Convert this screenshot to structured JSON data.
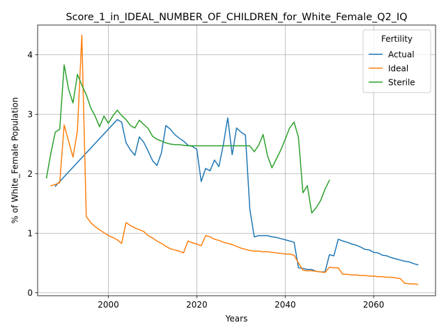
{
  "chart_data": {
    "type": "line",
    "title": "Score_1_in_IDEAL_NUMBER_OF_CHILDREN_for_White_Female_Q2_IQ",
    "xlabel": "Years",
    "ylabel": "% of White_Female Population",
    "xlim": [
      1984,
      2074
    ],
    "ylim": [
      -0.05,
      4.5
    ],
    "x_ticks": [
      2000,
      2020,
      2040,
      2060
    ],
    "x_tick_labels": [
      "2000",
      "2020",
      "2040",
      "2060"
    ],
    "y_ticks": [
      0,
      1,
      2,
      3,
      4
    ],
    "y_tick_labels": [
      "0",
      "1",
      "2",
      "3",
      "4"
    ],
    "grid": true,
    "legend": {
      "title": "Fertility",
      "placement": "top-right"
    },
    "series": [
      {
        "name": "Actual",
        "color": "#1f77b4",
        "points": [
          [
            1988,
            1.79
          ],
          [
            2002,
            2.91
          ],
          [
            2003,
            2.87
          ],
          [
            2004,
            2.52
          ],
          [
            2005,
            2.4
          ],
          [
            2006,
            2.31
          ],
          [
            2007,
            2.62
          ],
          [
            2008,
            2.53
          ],
          [
            2009,
            2.38
          ],
          [
            2010,
            2.22
          ],
          [
            2011,
            2.14
          ],
          [
            2012,
            2.35
          ],
          [
            2013,
            2.81
          ],
          [
            2014,
            2.75
          ],
          [
            2015,
            2.66
          ],
          [
            2016,
            2.6
          ],
          [
            2017,
            2.55
          ],
          [
            2018,
            2.48
          ],
          [
            2019,
            2.46
          ],
          [
            2020,
            2.41
          ],
          [
            2021,
            1.87
          ],
          [
            2022,
            2.09
          ],
          [
            2023,
            2.05
          ],
          [
            2024,
            2.23
          ],
          [
            2025,
            2.12
          ],
          [
            2026,
            2.49
          ],
          [
            2027,
            2.94
          ],
          [
            2028,
            2.32
          ],
          [
            2029,
            2.77
          ],
          [
            2030,
            2.7
          ],
          [
            2031,
            2.65
          ],
          [
            2032,
            1.4
          ],
          [
            2033,
            0.94
          ],
          [
            2034,
            0.96
          ],
          [
            2035,
            0.96
          ],
          [
            2036,
            0.96
          ],
          [
            2037,
            0.94
          ],
          [
            2038,
            0.93
          ],
          [
            2039,
            0.91
          ],
          [
            2040,
            0.89
          ],
          [
            2041,
            0.87
          ],
          [
            2042,
            0.85
          ],
          [
            2043,
            0.42
          ],
          [
            2044,
            0.41
          ],
          [
            2045,
            0.39
          ],
          [
            2046,
            0.39
          ],
          [
            2047,
            0.36
          ],
          [
            2048,
            0.35
          ],
          [
            2049,
            0.35
          ],
          [
            2050,
            0.64
          ],
          [
            2051,
            0.62
          ],
          [
            2052,
            0.9
          ],
          [
            2053,
            0.87
          ],
          [
            2054,
            0.85
          ],
          [
            2055,
            0.82
          ],
          [
            2056,
            0.8
          ],
          [
            2057,
            0.77
          ],
          [
            2058,
            0.73
          ],
          [
            2059,
            0.72
          ],
          [
            2060,
            0.68
          ],
          [
            2061,
            0.67
          ],
          [
            2062,
            0.63
          ],
          [
            2063,
            0.62
          ],
          [
            2064,
            0.59
          ],
          [
            2065,
            0.57
          ],
          [
            2066,
            0.55
          ],
          [
            2067,
            0.53
          ],
          [
            2068,
            0.52
          ],
          [
            2069,
            0.49
          ],
          [
            2070,
            0.47
          ]
        ]
      },
      {
        "name": "Ideal",
        "color": "#ff7f0e",
        "points": [
          [
            1987,
            1.8
          ],
          [
            1988,
            1.82
          ],
          [
            1989,
            1.85
          ],
          [
            1990,
            2.82
          ],
          [
            1991,
            2.55
          ],
          [
            1992,
            2.28
          ],
          [
            1993,
            2.72
          ],
          [
            1994,
            4.33
          ],
          [
            1995,
            1.28
          ],
          [
            1996,
            1.18
          ],
          [
            1997,
            1.11
          ],
          [
            1998,
            1.06
          ],
          [
            1999,
            1.01
          ],
          [
            2000,
            0.96
          ],
          [
            2001,
            0.93
          ],
          [
            2002,
            0.89
          ],
          [
            2003,
            0.83
          ],
          [
            2004,
            1.18
          ],
          [
            2005,
            1.13
          ],
          [
            2006,
            1.09
          ],
          [
            2007,
            1.06
          ],
          [
            2008,
            1.03
          ],
          [
            2009,
            0.96
          ],
          [
            2010,
            0.92
          ],
          [
            2011,
            0.87
          ],
          [
            2012,
            0.83
          ],
          [
            2013,
            0.78
          ],
          [
            2014,
            0.74
          ],
          [
            2015,
            0.72
          ],
          [
            2016,
            0.7
          ],
          [
            2017,
            0.67
          ],
          [
            2018,
            0.87
          ],
          [
            2019,
            0.84
          ],
          [
            2020,
            0.82
          ],
          [
            2021,
            0.79
          ],
          [
            2022,
            0.96
          ],
          [
            2023,
            0.94
          ],
          [
            2024,
            0.9
          ],
          [
            2025,
            0.88
          ],
          [
            2026,
            0.85
          ],
          [
            2027,
            0.83
          ],
          [
            2028,
            0.81
          ],
          [
            2029,
            0.78
          ],
          [
            2030,
            0.75
          ],
          [
            2031,
            0.73
          ],
          [
            2032,
            0.71
          ],
          [
            2033,
            0.7
          ],
          [
            2034,
            0.7
          ],
          [
            2035,
            0.69
          ],
          [
            2036,
            0.69
          ],
          [
            2037,
            0.68
          ],
          [
            2038,
            0.67
          ],
          [
            2039,
            0.66
          ],
          [
            2040,
            0.65
          ],
          [
            2041,
            0.65
          ],
          [
            2042,
            0.63
          ],
          [
            2043,
            0.5
          ],
          [
            2044,
            0.38
          ],
          [
            2045,
            0.37
          ],
          [
            2046,
            0.37
          ],
          [
            2047,
            0.36
          ],
          [
            2048,
            0.35
          ],
          [
            2049,
            0.34
          ],
          [
            2050,
            0.43
          ],
          [
            2051,
            0.42
          ],
          [
            2052,
            0.42
          ],
          [
            2053,
            0.31
          ],
          [
            2054,
            0.31
          ],
          [
            2055,
            0.3
          ],
          [
            2056,
            0.3
          ],
          [
            2057,
            0.29
          ],
          [
            2058,
            0.29
          ],
          [
            2059,
            0.28
          ],
          [
            2060,
            0.28
          ],
          [
            2061,
            0.27
          ],
          [
            2062,
            0.27
          ],
          [
            2063,
            0.26
          ],
          [
            2064,
            0.26
          ],
          [
            2065,
            0.25
          ],
          [
            2066,
            0.24
          ],
          [
            2067,
            0.16
          ],
          [
            2068,
            0.15
          ],
          [
            2069,
            0.15
          ],
          [
            2070,
            0.14
          ]
        ]
      },
      {
        "name": "Sterile",
        "color": "#2ca02c",
        "points": [
          [
            1986,
            1.93
          ],
          [
            1987,
            2.35
          ],
          [
            1988,
            2.7
          ],
          [
            1989,
            2.75
          ],
          [
            1990,
            3.83
          ],
          [
            1991,
            3.42
          ],
          [
            1992,
            3.19
          ],
          [
            1993,
            3.67
          ],
          [
            1994,
            3.49
          ],
          [
            1995,
            3.33
          ],
          [
            1996,
            3.11
          ],
          [
            1997,
            2.97
          ],
          [
            1998,
            2.79
          ],
          [
            1999,
            2.97
          ],
          [
            2000,
            2.85
          ],
          [
            2001,
            2.97
          ],
          [
            2002,
            3.07
          ],
          [
            2003,
            2.98
          ],
          [
            2004,
            2.91
          ],
          [
            2005,
            2.81
          ],
          [
            2006,
            2.77
          ],
          [
            2007,
            2.9
          ],
          [
            2008,
            2.83
          ],
          [
            2009,
            2.76
          ],
          [
            2010,
            2.63
          ],
          [
            2011,
            2.58
          ],
          [
            2012,
            2.55
          ],
          [
            2013,
            2.52
          ],
          [
            2014,
            2.5
          ],
          [
            2015,
            2.49
          ],
          [
            2016,
            2.49
          ],
          [
            2017,
            2.48
          ],
          [
            2018,
            2.47
          ],
          [
            2019,
            2.47
          ],
          [
            2020,
            2.47
          ],
          [
            2025,
            2.47
          ],
          [
            2032,
            2.47
          ],
          [
            2033,
            2.37
          ],
          [
            2034,
            2.48
          ],
          [
            2035,
            2.66
          ],
          [
            2036,
            2.3
          ],
          [
            2037,
            2.1
          ],
          [
            2038,
            2.25
          ],
          [
            2039,
            2.4
          ],
          [
            2040,
            2.58
          ],
          [
            2041,
            2.77
          ],
          [
            2042,
            2.87
          ],
          [
            2043,
            2.61
          ],
          [
            2044,
            1.68
          ],
          [
            2045,
            1.8
          ],
          [
            2046,
            1.34
          ],
          [
            2047,
            1.43
          ],
          [
            2048,
            1.55
          ],
          [
            2049,
            1.74
          ],
          [
            2050,
            1.89
          ]
        ]
      }
    ]
  }
}
